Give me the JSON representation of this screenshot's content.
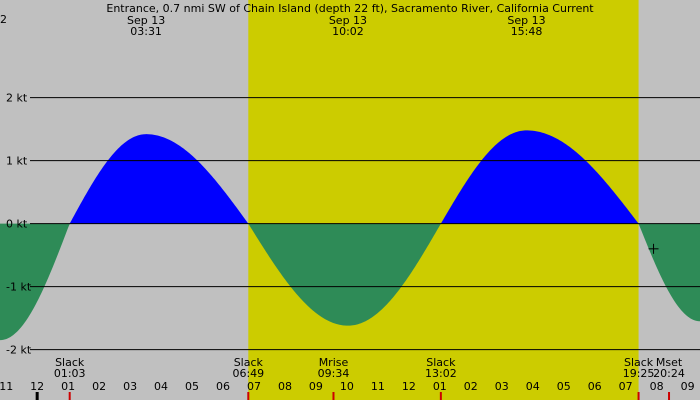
{
  "chart_data": {
    "type": "area",
    "title": "Entrance, 0.7 nmi SW of Chain Island (depth 22 ft), Sacramento River, California Current",
    "corner_label": "2",
    "peak_labels": [
      {
        "date": "Sep 13",
        "time": "03:31",
        "hour": 3.5167
      },
      {
        "date": "Sep 13",
        "time": "10:02",
        "hour": 10.0333
      },
      {
        "date": "Sep 13",
        "time": "15:48",
        "hour": 15.8
      }
    ],
    "y_ticks": [
      {
        "value": 2,
        "label": "2 kt"
      },
      {
        "value": 1,
        "label": "1 kt"
      },
      {
        "value": 0,
        "label": "0 kt"
      },
      {
        "value": -1,
        "label": "-1 kt"
      },
      {
        "value": -2,
        "label": "-2 kt"
      }
    ],
    "ylim": [
      -2.8,
      3.55
    ],
    "xlim": [
      -1.2,
      21.4
    ],
    "daylight": {
      "start": 6.8167,
      "end": 19.4167
    },
    "hour_ticks": [
      {
        "hour": -1,
        "label": "11"
      },
      {
        "hour": 0,
        "label": "12"
      },
      {
        "hour": 1,
        "label": "01"
      },
      {
        "hour": 2,
        "label": "02"
      },
      {
        "hour": 3,
        "label": "03"
      },
      {
        "hour": 4,
        "label": "04"
      },
      {
        "hour": 5,
        "label": "05"
      },
      {
        "hour": 6,
        "label": "06"
      },
      {
        "hour": 7,
        "label": "07"
      },
      {
        "hour": 8,
        "label": "08"
      },
      {
        "hour": 9,
        "label": "09"
      },
      {
        "hour": 10,
        "label": "10"
      },
      {
        "hour": 11,
        "label": "11"
      },
      {
        "hour": 12,
        "label": "12"
      },
      {
        "hour": 13,
        "label": "01"
      },
      {
        "hour": 14,
        "label": "02"
      },
      {
        "hour": 15,
        "label": "03"
      },
      {
        "hour": 16,
        "label": "04"
      },
      {
        "hour": 17,
        "label": "05"
      },
      {
        "hour": 18,
        "label": "06"
      },
      {
        "hour": 19,
        "label": "07"
      },
      {
        "hour": 20,
        "label": "08"
      },
      {
        "hour": 21,
        "label": "09"
      }
    ],
    "events": [
      {
        "label": "Slack",
        "time": "01:03",
        "hour": 1.05
      },
      {
        "label": "Slack",
        "time": "06:49",
        "hour": 6.8167
      },
      {
        "label": "Mrise",
        "time": "09:34",
        "hour": 9.5667
      },
      {
        "label": "Slack",
        "time": "13:02",
        "hour": 13.0333
      },
      {
        "label": "Slack",
        "time": "19:25",
        "hour": 19.4167
      },
      {
        "label": "Mset",
        "time": "20:24",
        "hour": 20.4
      }
    ],
    "event_marks": [
      {
        "hour": 1.05,
        "color": "#cc0000"
      },
      {
        "hour": 6.8167,
        "color": "#cc0000"
      },
      {
        "hour": 9.5667,
        "color": "#cc0000"
      },
      {
        "hour": 13.0333,
        "color": "#cc0000"
      },
      {
        "hour": 19.4167,
        "color": "#cc0000"
      },
      {
        "hour": 20.4,
        "color": "#cc0000"
      }
    ],
    "midnight_mark": {
      "hour": 0,
      "color": "#000000"
    },
    "current_curve": [
      {
        "hour": -1.2,
        "value": -1.85
      },
      {
        "hour": 1.05,
        "value": 0
      },
      {
        "hour": 3.5167,
        "value": 1.42
      },
      {
        "hour": 6.8167,
        "value": 0
      },
      {
        "hour": 10.0333,
        "value": -1.62
      },
      {
        "hour": 13.0333,
        "value": 0
      },
      {
        "hour": 15.8,
        "value": 1.48
      },
      {
        "hour": 19.4167,
        "value": 0
      },
      {
        "hour": 21.4,
        "value": -1.55
      }
    ],
    "cursor": {
      "hour": 19.9,
      "value": -0.4
    },
    "colors": {
      "background": "#c0c0c0",
      "daylight": "#cccc00",
      "flood": "#0000ff",
      "ebb": "#2e8b57",
      "gridline": "#000000",
      "text": "#000000"
    }
  }
}
